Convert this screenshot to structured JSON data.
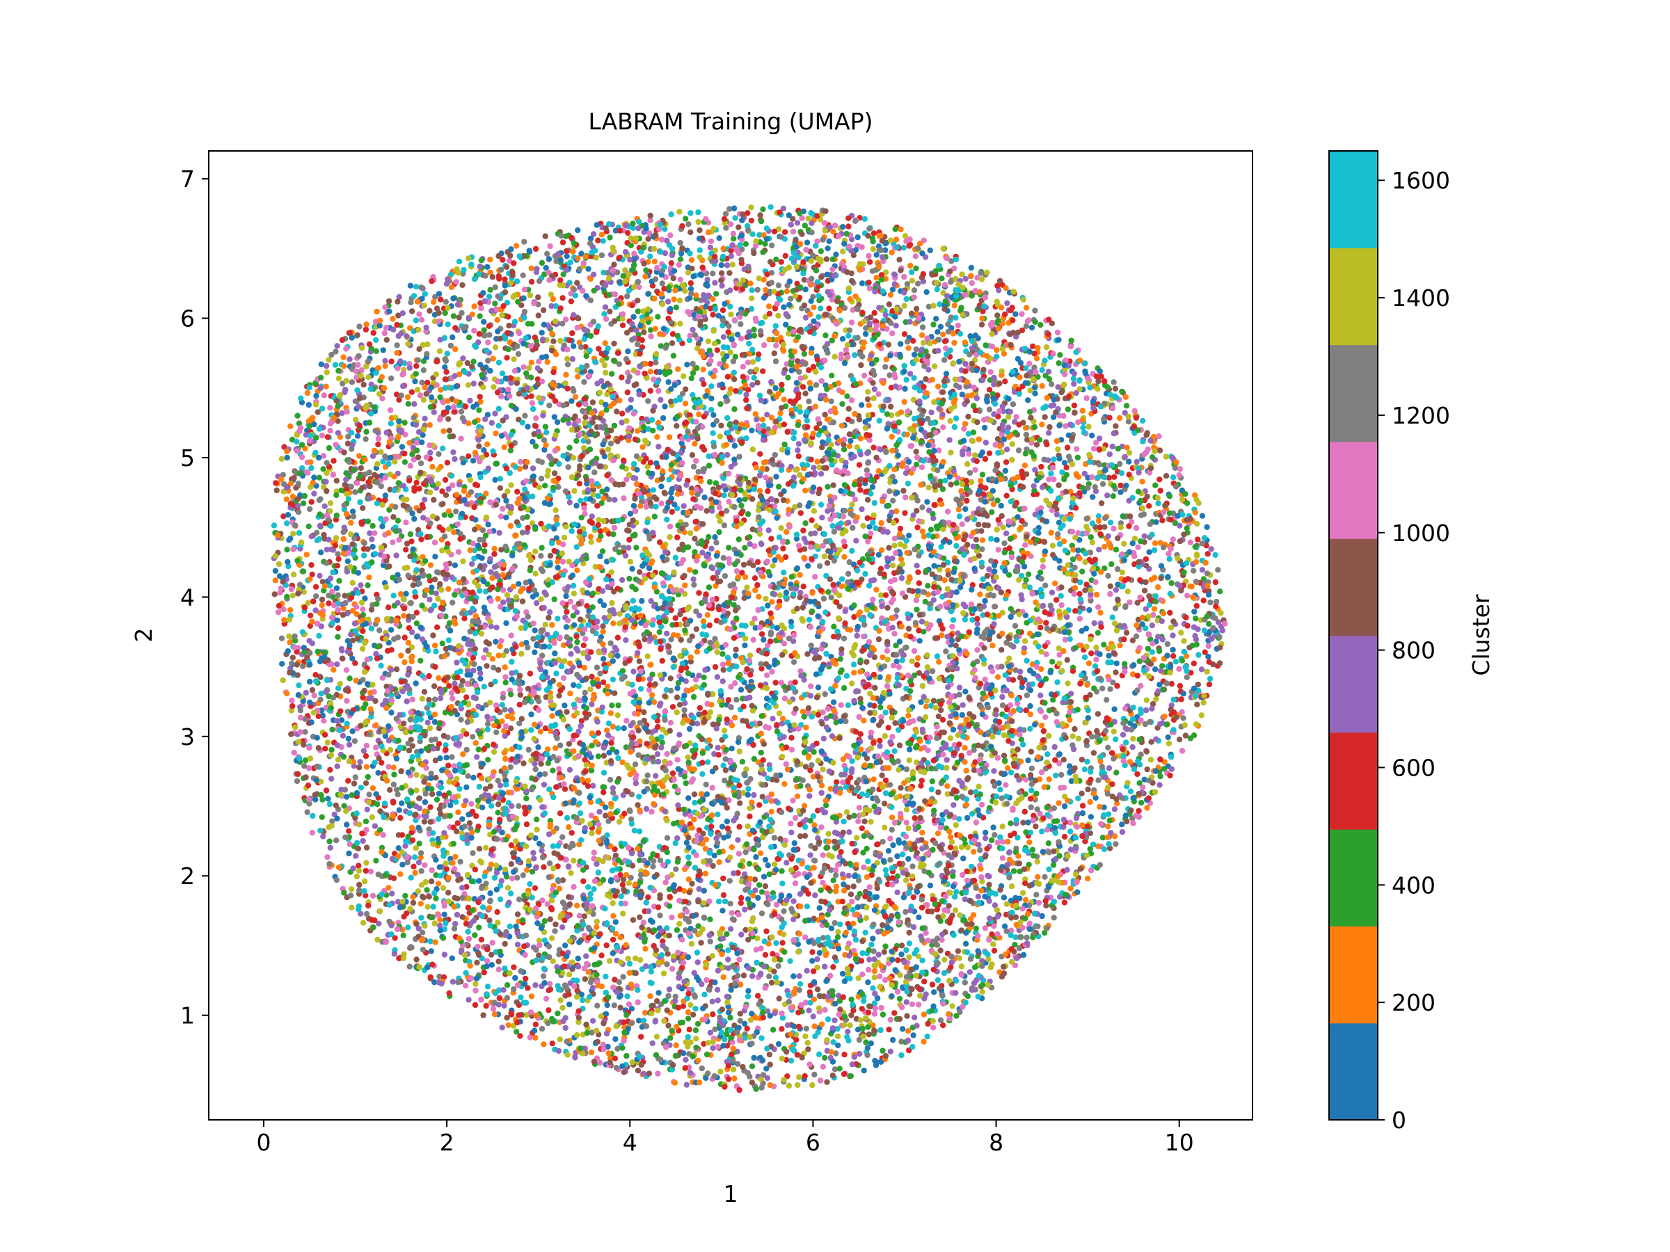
{
  "chart_data": {
    "type": "scatter",
    "title": "LABRAM Training (UMAP)",
    "xlabel": "1",
    "ylabel": "2",
    "xlim": [
      -0.6,
      10.8
    ],
    "ylim": [
      0.25,
      7.2
    ],
    "xticks": [
      0,
      2,
      4,
      6,
      8,
      10
    ],
    "yticks": [
      1,
      2,
      3,
      4,
      5,
      6,
      7
    ],
    "xtick_labels": [
      "0",
      "2",
      "4",
      "6",
      "8",
      "10"
    ],
    "ytick_labels": [
      "1",
      "2",
      "3",
      "4",
      "5",
      "6",
      "7"
    ],
    "grid": false,
    "cloud": {
      "description_values": "dense roughly circular cloud of points, each colored by cluster id",
      "center": [
        5.1,
        3.75
      ],
      "x_extent": [
        -0.1,
        10.25
      ],
      "y_extent": [
        0.55,
        6.88
      ]
    },
    "colorbar": {
      "label": "Cluster",
      "range": [
        0,
        1650
      ],
      "ticks": [
        0,
        200,
        400,
        600,
        800,
        1000,
        1200,
        1400,
        1600
      ],
      "tick_labels": [
        "0",
        "200",
        "400",
        "600",
        "800",
        "1000",
        "1200",
        "1400",
        "1600"
      ],
      "colors": [
        "#1f77b4",
        "#ff7f0e",
        "#2ca02c",
        "#d62728",
        "#9467bd",
        "#8c564b",
        "#e377c2",
        "#7f7f7f",
        "#bcbd22",
        "#17becf"
      ]
    }
  }
}
